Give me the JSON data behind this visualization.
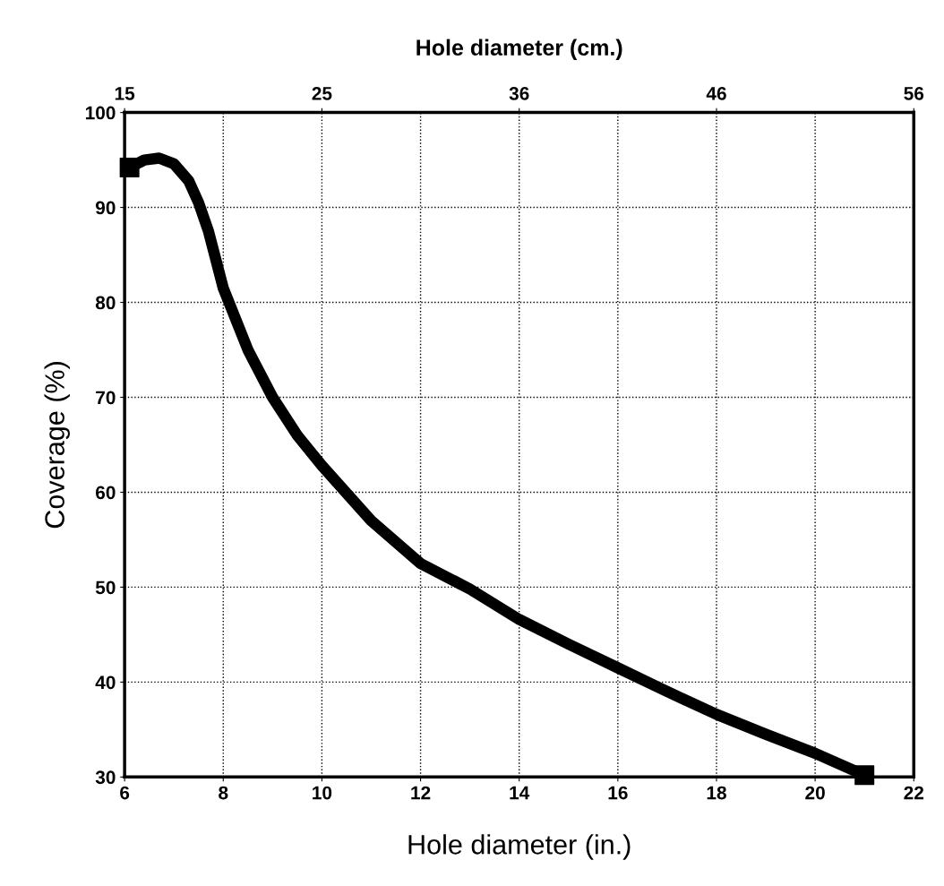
{
  "chart_data": {
    "type": "line",
    "xlabel": "Hole diameter (in.)",
    "ylabel": "Coverage (%)",
    "x2label": "Hole diameter (cm.)",
    "xlim": [
      6,
      22
    ],
    "xticks": [
      6,
      8,
      10,
      12,
      14,
      16,
      18,
      20,
      22
    ],
    "ylim": [
      30,
      100
    ],
    "yticks": [
      30,
      40,
      50,
      60,
      70,
      80,
      90,
      100
    ],
    "x2lim": [
      15.24,
      55.88
    ],
    "x2ticks": [
      {
        "value": 15.24,
        "label": "15"
      },
      {
        "value": 25.4,
        "label": "25"
      },
      {
        "value": 35.56,
        "label": "36"
      },
      {
        "value": 45.72,
        "label": "46"
      },
      {
        "value": 55.88,
        "label": "56"
      }
    ],
    "grid": true,
    "line_style": "solid",
    "series": [
      {
        "type": "scatter",
        "color": "#000000",
        "marker": "square",
        "x": [
          6.1,
          21.0
        ],
        "values": [
          94.2,
          30.2
        ]
      },
      {
        "color": "#000000",
        "marker": "none",
        "x": [
          6.1,
          6.4,
          6.7,
          7.0,
          7.3,
          7.5,
          7.7,
          7.9,
          8.0,
          8.5,
          9.0,
          9.5,
          10.0,
          11.0,
          12.0,
          13.0,
          14.0,
          15.0,
          16.0,
          17.0,
          18.0,
          19.0,
          20.0,
          21.0
        ],
        "values": [
          94.2,
          95.0,
          95.2,
          94.6,
          92.8,
          90.5,
          87.5,
          83.5,
          81.5,
          75.0,
          70.0,
          66.0,
          62.8,
          57.0,
          52.5,
          49.8,
          46.6,
          44.0,
          41.5,
          39.0,
          36.6,
          34.5,
          32.5,
          30.2
        ]
      }
    ]
  }
}
